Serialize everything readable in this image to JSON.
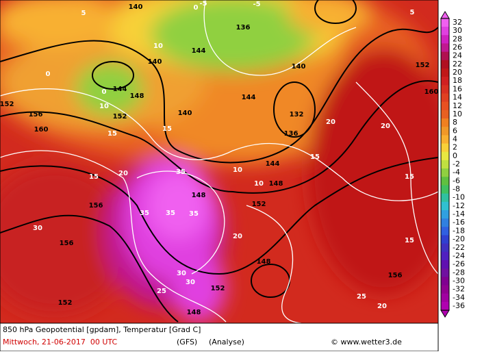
{
  "caption": {
    "line1": "850 hPa Geopotential [gpdam], Temperatur [Grad C]",
    "date": "Mittwoch, 21-06-2017  00 UTC",
    "model": "(GFS)",
    "run": "(Analyse)",
    "copyright": "© www.wetter3.de"
  },
  "legend": {
    "levels": [
      32,
      30,
      28,
      26,
      24,
      22,
      20,
      18,
      16,
      14,
      12,
      10,
      8,
      6,
      4,
      2,
      0,
      -2,
      -4,
      -6,
      -8,
      -10,
      -12,
      -14,
      -16,
      -18,
      -20,
      -22,
      -24,
      -26,
      -28,
      -30,
      -32,
      -34,
      -36
    ],
    "colors": [
      "#f060f0",
      "#e040e0",
      "#d020c0",
      "#c01890",
      "#b01050",
      "#b01020",
      "#c01818",
      "#d02020",
      "#d83020",
      "#e04020",
      "#e85020",
      "#e86020",
      "#f08020",
      "#f09828",
      "#f8b030",
      "#f8d038",
      "#e8e840",
      "#c0e040",
      "#90d040",
      "#60c040",
      "#40c060",
      "#30c0a0",
      "#30c0d0",
      "#30a0e0",
      "#3080e0",
      "#3060e0",
      "#3040d0",
      "#4030c0",
      "#5020c0",
      "#6010b0",
      "#7010a0",
      "#800090",
      "#900090",
      "#a000a0",
      "#b000b0"
    ]
  },
  "map_labels": [
    "140",
    "136",
    "140",
    "144",
    "144",
    "140",
    "148",
    "152",
    "156",
    "160",
    "152",
    "156",
    "152",
    "148",
    "144",
    "132",
    "136",
    "140",
    "148",
    "152",
    "156",
    "160",
    "152",
    "148",
    "144",
    "156",
    "152",
    "148",
    "0",
    "5",
    "-5",
    "0",
    "5",
    "10",
    "10",
    "10",
    "10",
    "15",
    "15",
    "15",
    "15",
    "15",
    "20",
    "20",
    "20",
    "20",
    "25",
    "25",
    "30",
    "30",
    "30",
    "35",
    "35",
    "35",
    "35",
    "-5",
    "0",
    "15",
    "20"
  ]
}
